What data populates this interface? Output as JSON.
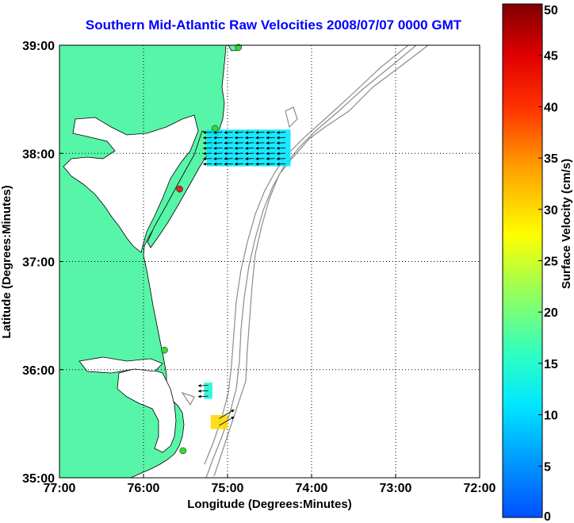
{
  "chart_data": {
    "type": "map-vector-field",
    "title": "Southern Mid-Atlantic Raw Velocities 2008/07/07 0000 GMT",
    "xlabel": "Longitude (Degrees:Minutes)",
    "ylabel": "Latitude (Degrees:Minutes)",
    "xlim": [
      -77,
      -72
    ],
    "ylim": [
      35,
      39
    ],
    "x_ticks": [
      {
        "value": -77,
        "label": "77:00"
      },
      {
        "value": -76,
        "label": "76:00"
      },
      {
        "value": -75,
        "label": "75:00"
      },
      {
        "value": -74,
        "label": "74:00"
      },
      {
        "value": -73,
        "label": "73:00"
      },
      {
        "value": -72,
        "label": "72:00"
      }
    ],
    "y_ticks": [
      {
        "value": 39,
        "label": "39:00"
      },
      {
        "value": 38,
        "label": "38:00"
      },
      {
        "value": 37,
        "label": "37:00"
      },
      {
        "value": 36,
        "label": "36:00"
      },
      {
        "value": 35,
        "label": "35:00"
      }
    ],
    "grid": true,
    "colorbar": {
      "label": "Surface Velocity (cm/s)",
      "min": 0,
      "max": 50,
      "ticks": [
        0,
        5,
        10,
        15,
        20,
        25,
        30,
        35,
        40,
        45,
        50
      ]
    },
    "stations": [
      {
        "lon": -74.87,
        "lat": 38.98,
        "status": "active"
      },
      {
        "lon": -75.15,
        "lat": 38.23,
        "status": "active"
      },
      {
        "lon": -75.57,
        "lat": 37.67,
        "status": "inactive"
      },
      {
        "lon": -75.75,
        "lat": 36.18,
        "status": "active"
      },
      {
        "lon": -75.53,
        "lat": 35.25,
        "status": "active"
      }
    ],
    "velocity_patches": [
      {
        "lon_min": -75.25,
        "lon_max": -74.25,
        "lat_min": 37.88,
        "lat_max": 38.22,
        "speed": 11,
        "direction": "west"
      },
      {
        "lon_min": -75.28,
        "lon_max": -75.18,
        "lat_min": 35.73,
        "lat_max": 35.88,
        "speed": 14,
        "direction": "west"
      },
      {
        "lon_min": -75.2,
        "lon_max": -75.0,
        "lat_min": 35.45,
        "lat_max": 35.58,
        "speed": 30,
        "direction": "northeast"
      }
    ],
    "colors": {
      "land": "#57f5a8",
      "active_station": "#33dd33",
      "inactive_station": "#dd2222",
      "title": "#0000ff",
      "bathymetry": "#8c8c8c"
    }
  }
}
